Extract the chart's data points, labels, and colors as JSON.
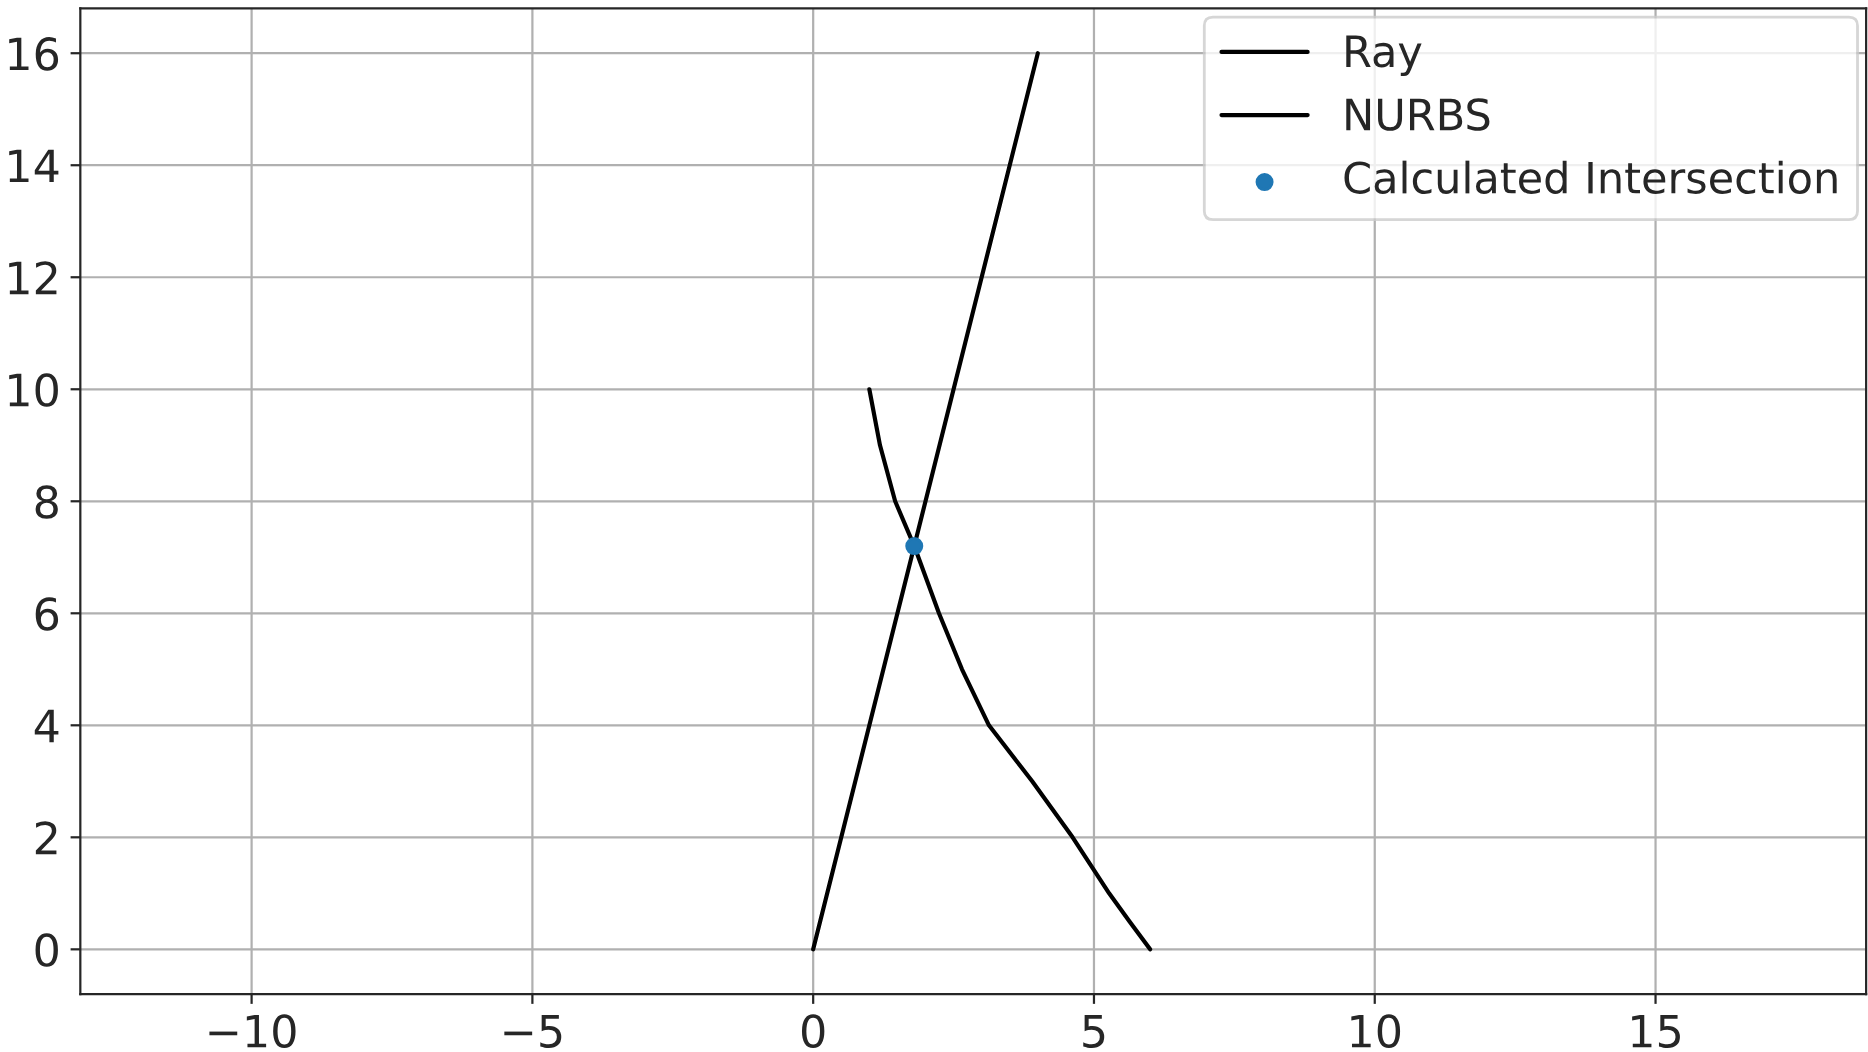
{
  "chart_data": {
    "type": "line",
    "series": [
      {
        "name": "Ray",
        "color": "#000000",
        "x": [
          0,
          4
        ],
        "values": [
          0,
          16
        ]
      },
      {
        "name": "NURBS",
        "color": "#000000",
        "x": [
          1.0,
          1.19,
          1.46,
          1.8,
          2.24,
          2.65,
          3.13,
          3.9,
          4.62,
          5.27,
          5.63,
          6.0
        ],
        "values": [
          10,
          9,
          8,
          7.2,
          6,
          5,
          4,
          3,
          2,
          1,
          0.5,
          0
        ]
      },
      {
        "name": "Calculated Intersection",
        "type": "scatter",
        "color": "#1f77b4",
        "x": [
          1.8
        ],
        "values": [
          7.2
        ]
      }
    ],
    "xlim": [
      -13.05,
      18.75
    ],
    "xticks": [
      {
        "value": -10,
        "label": "−10"
      },
      {
        "value": -5,
        "label": "−5"
      },
      0,
      5,
      10,
      15
    ],
    "ylim": [
      -0.8,
      16.8
    ],
    "yticks": [
      0,
      2,
      4,
      6,
      8,
      10,
      12,
      14,
      16
    ],
    "grid": true,
    "legend": "top right"
  }
}
